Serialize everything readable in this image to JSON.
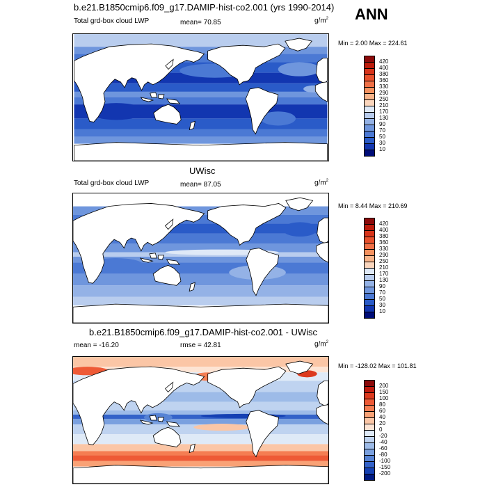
{
  "season_label": "ANN",
  "panels": [
    {
      "title": "b.e21.B1850cmip6.f09_g17.DAMIP-hist-co2.001 (yrs 1990-2014)",
      "variable": "Total grd-box cloud LWP",
      "stat_text": "mean=  70.85",
      "units_base": "g/m",
      "units_exp": "2",
      "minmax": "Min =   2.00 Max = 224.61",
      "colorbar_labels": [
        "420",
        "400",
        "380",
        "360",
        "330",
        "290",
        "250",
        "210",
        "170",
        "130",
        "90",
        "70",
        "50",
        "30",
        "10"
      ],
      "colorbar_colors": [
        "#8c0a0a",
        "#bd1c0c",
        "#d8341a",
        "#e8502c",
        "#f07046",
        "#f5925f",
        "#f8b48a",
        "#fbd6bd",
        "#dfe9f7",
        "#b9cdee",
        "#94b2e6",
        "#6f96dd",
        "#4b79d4",
        "#2a5bc8",
        "#1236b0",
        "#000d78"
      ]
    },
    {
      "title": "UWisc",
      "variable": "Total grd-box cloud LWP",
      "stat_text": "mean=  87.05",
      "units_base": "g/m",
      "units_exp": "2",
      "minmax": "Min =   8.44 Max = 210.69",
      "colorbar_labels": [
        "420",
        "400",
        "380",
        "360",
        "330",
        "290",
        "250",
        "210",
        "170",
        "130",
        "90",
        "70",
        "50",
        "30",
        "10"
      ],
      "colorbar_colors": [
        "#8c0a0a",
        "#bd1c0c",
        "#d8341a",
        "#e8502c",
        "#f07046",
        "#f5925f",
        "#f8b48a",
        "#fbd6bd",
        "#dfe9f7",
        "#b9cdee",
        "#94b2e6",
        "#6f96dd",
        "#4b79d4",
        "#2a5bc8",
        "#1236b0",
        "#000d78"
      ]
    },
    {
      "title": "b.e21.B1850cmip6.f09_g17.DAMIP-hist-co2.001 - UWisc",
      "variable": "mean = -16.20",
      "stat_text": "rmse =  42.81",
      "units_base": "g/m",
      "units_exp": "2",
      "minmax": "Min = -128.02 Max = 101.81",
      "colorbar_labels": [
        "200",
        "150",
        "100",
        "80",
        "60",
        "40",
        "20",
        "0",
        "-20",
        "-40",
        "-60",
        "-80",
        "-100",
        "-150",
        "-200"
      ],
      "colorbar_colors": [
        "#8c0a0a",
        "#c01a0e",
        "#dc3a1e",
        "#ee5a36",
        "#f57d52",
        "#f9a276",
        "#fbc6a6",
        "#fde4d4",
        "#dfeaf7",
        "#bfd3f0",
        "#9dbbe8",
        "#7aa0df",
        "#5683d5",
        "#3362c9",
        "#1440b3",
        "#001a82"
      ]
    }
  ]
}
